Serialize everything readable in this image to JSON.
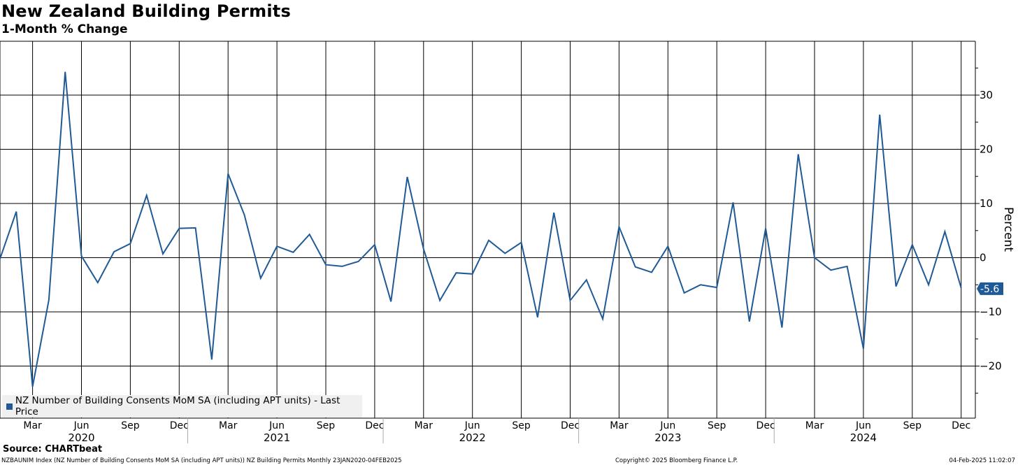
{
  "header": {
    "title": "New Zealand Building Permits",
    "subtitle": "1-Month % Change"
  },
  "footer": {
    "source": "Source: CHARTbeat",
    "index_note": "NZBAUNIM Index (NZ Number of Building Consents MoM SA (including APT units)) NZ Building Permits  Monthly 23JAN2020-04FEB2025",
    "copyright": "Copyright© 2025 Bloomberg Finance L.P.",
    "timestamp": "04-Feb-2025 11:02:07"
  },
  "colors": {
    "line": "#1f5a96",
    "grid": "#000000",
    "legend_bg": "#f0f0f0",
    "last_price_badge": "#1f5a96"
  },
  "chart_data": {
    "type": "line",
    "ylabel": "Percent",
    "ylim": [
      -29,
      40
    ],
    "yticks": [
      -20,
      -10,
      0,
      10,
      20,
      30
    ],
    "y_axis_side": "right",
    "grid": true,
    "legend_position": "bottom-left",
    "x_month_labels": [
      "Mar",
      "Jun",
      "Sep",
      "Dec",
      "Mar",
      "Jun",
      "Sep",
      "Dec",
      "Mar",
      "Jun",
      "Sep",
      "Dec",
      "Mar",
      "Jun",
      "Sep",
      "Dec",
      "Mar",
      "Jun",
      "Sep",
      "Dec"
    ],
    "x_year_labels": [
      "2020",
      "2021",
      "2022",
      "2023",
      "2024"
    ],
    "last_value_label": "-5.6",
    "series": [
      {
        "name": "NZ Number of Building Consents MoM SA (including APT units) - Last Price",
        "x": [
          "2020-01",
          "2020-02",
          "2020-03",
          "2020-04",
          "2020-05",
          "2020-06",
          "2020-07",
          "2020-08",
          "2020-09",
          "2020-10",
          "2020-11",
          "2020-12",
          "2021-01",
          "2021-02",
          "2021-03",
          "2021-04",
          "2021-05",
          "2021-06",
          "2021-07",
          "2021-08",
          "2021-09",
          "2021-10",
          "2021-11",
          "2021-12",
          "2022-01",
          "2022-02",
          "2022-03",
          "2022-04",
          "2022-05",
          "2022-06",
          "2022-07",
          "2022-08",
          "2022-09",
          "2022-10",
          "2022-11",
          "2022-12",
          "2023-01",
          "2023-02",
          "2023-03",
          "2023-04",
          "2023-05",
          "2023-06",
          "2023-07",
          "2023-08",
          "2023-09",
          "2023-10",
          "2023-11",
          "2023-12",
          "2024-01",
          "2024-02",
          "2024-03",
          "2024-04",
          "2024-05",
          "2024-06",
          "2024-07",
          "2024-08",
          "2024-09",
          "2024-10",
          "2024-11",
          "2024-12"
        ],
        "values": [
          -0.2,
          8.5,
          -23.8,
          -7.8,
          34.3,
          0.3,
          -4.6,
          1.1,
          2.6,
          11.5,
          0.7,
          5.4,
          5.5,
          -18.8,
          15.5,
          7.9,
          -3.8,
          2.1,
          1.0,
          4.3,
          -1.3,
          -1.6,
          -0.7,
          2.4,
          -8.1,
          14.9,
          1.6,
          -7.9,
          -2.8,
          -3.0,
          3.2,
          0.8,
          2.8,
          -11.0,
          8.3,
          -7.9,
          -4.1,
          -11.3,
          5.7,
          -1.7,
          -2.7,
          2.1,
          -6.5,
          -5.0,
          -5.5,
          10.2,
          -11.8,
          5.4,
          -12.9,
          19.1,
          0.0,
          -2.3,
          -1.6,
          -16.8,
          26.4,
          -5.3,
          2.4,
          -5.0,
          4.8,
          -5.6
        ]
      }
    ]
  }
}
